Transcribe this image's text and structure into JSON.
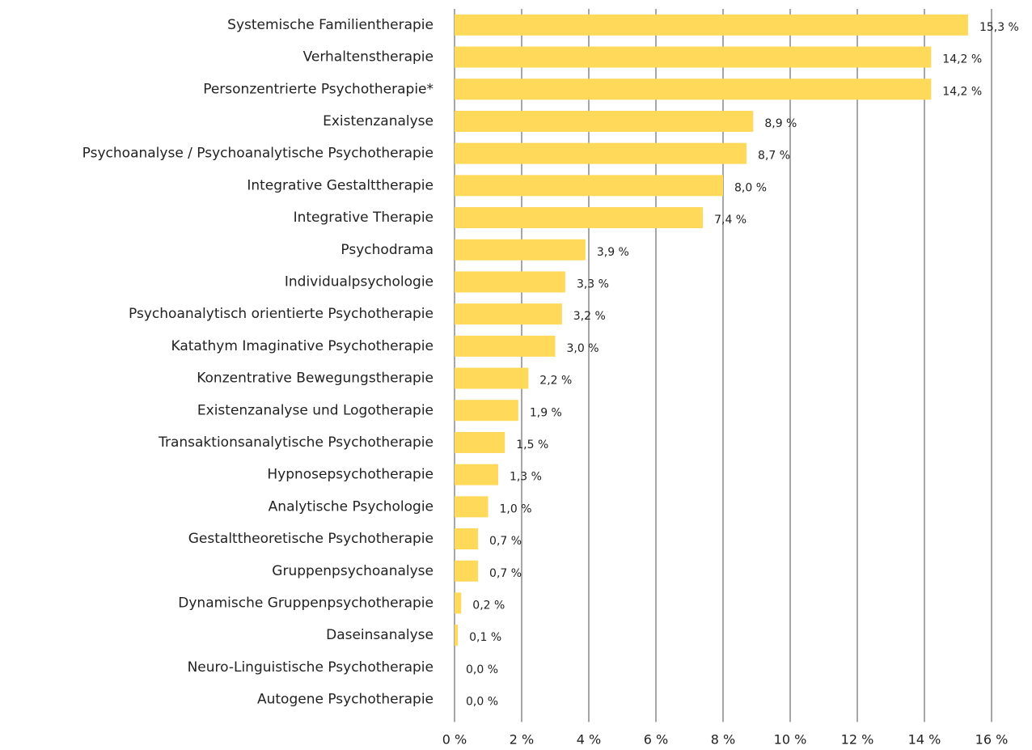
{
  "chart_data": {
    "type": "barh",
    "categories": [
      "Systemische Familientherapie",
      "Verhaltenstherapie",
      "Personzentrierte Psychotherapie*",
      "Existenzanalyse",
      "Psychoanalyse / Psychoanalytische Psychotherapie",
      "Integrative Gestalttherapie",
      "Integrative Therapie",
      "Psychodrama",
      "Individualpsychologie",
      "Psychoanalytisch orientierte Psychotherapie",
      "Katathym Imaginative Psychotherapie",
      "Konzentrative Bewegungstherapie",
      "Existenzanalyse und Logotherapie",
      "Transaktionsanalytische Psychotherapie",
      "Hypnosepsychotherapie",
      "Analytische Psychologie",
      "Gestalttheoretische Psychotherapie",
      "Gruppenpsychoanalyse",
      "Dynamische Gruppenpsychotherapie",
      "Daseinsanalyse",
      "Neuro-Linguistische Psychotherapie",
      "Autogene Psychotherapie"
    ],
    "values": [
      15.3,
      14.2,
      14.2,
      8.9,
      8.7,
      8.0,
      7.4,
      3.9,
      3.3,
      3.2,
      3.0,
      2.2,
      1.9,
      1.5,
      1.3,
      1.0,
      0.7,
      0.7,
      0.2,
      0.1,
      0.0,
      0.0
    ],
    "value_labels": [
      "15,3 %",
      "14,2 %",
      "14,2 %",
      "8,9 %",
      "8,7 %",
      "8,0 %",
      "7,4 %",
      "3,9 %",
      "3,3 %",
      "3,2 %",
      "3,0 %",
      "2,2 %",
      "1,9 %",
      "1,5 %",
      "1,3 %",
      "1,0 %",
      "0,7 %",
      "0,7 %",
      "0,2 %",
      "0,1 %",
      "0,0 %",
      "0,0 %"
    ],
    "color": "#ffd95a",
    "xlim": [
      0,
      16
    ],
    "xticks": [
      {
        "value": 0,
        "label": "0 %"
      },
      {
        "value": 2,
        "label": "2 %"
      },
      {
        "value": 4,
        "label": "4 %"
      },
      {
        "value": 6,
        "label": "6 %"
      },
      {
        "value": 8,
        "label": "8 %"
      },
      {
        "value": 10,
        "label": "10 %"
      },
      {
        "value": 12,
        "label": "12 %"
      },
      {
        "value": 14,
        "label": "14 %"
      },
      {
        "value": 16,
        "label": "16 %"
      }
    ],
    "grid": true
  }
}
